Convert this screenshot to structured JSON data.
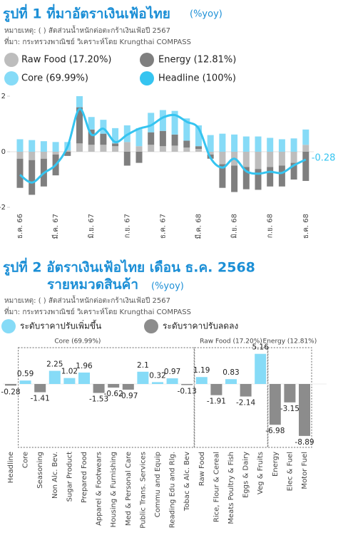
{
  "chart_data": [
    {
      "type": "combo",
      "title": "รูปที่ 1 ที่มาอัตราเงินเฟ้อไทย",
      "unit": "(%yoy)",
      "note": "หมายเหตุ: ( ) สัดส่วนน้ำหนักต่อตะกร้าเงินเฟ้อปี 2567",
      "source": "ที่มา: กระทรวงพาณิชย์ วิเคราะห์โดย Krungthai COMPASS",
      "categories": [
        "ธ.ค. 66",
        null,
        null,
        "มี.ค. 67",
        null,
        null,
        "มิ.ย. 67",
        null,
        null,
        "ก.ย. 67",
        null,
        null,
        "ธ.ค. 67",
        null,
        null,
        "มี.ค. 68",
        null,
        null,
        "มิ.ย. 68",
        null,
        null,
        "ก.ย. 68",
        null,
        null,
        "ธ.ค. 68"
      ],
      "series": [
        {
          "name": "Raw Food (17.20%)",
          "color": "#bdbdbd",
          "kind": "bar",
          "values": [
            -0.25,
            -0.3,
            -0.25,
            -0.1,
            0.05,
            0.3,
            0.25,
            0.25,
            0.2,
            0.35,
            0.2,
            0.25,
            0.2,
            0.22,
            0.15,
            0.1,
            -0.1,
            -0.45,
            -0.5,
            -0.55,
            -0.62,
            -0.55,
            -0.5,
            -0.4,
            0.25
          ]
        },
        {
          "name": "Energy (12.81%)",
          "color": "#7f7f7f",
          "kind": "bar",
          "values": [
            -1.05,
            -1.25,
            -1.0,
            -0.75,
            -0.15,
            1.3,
            0.55,
            0.4,
            0.1,
            -0.5,
            -0.4,
            0.45,
            0.55,
            0.4,
            0.25,
            0.1,
            -0.15,
            -0.85,
            -0.95,
            -0.8,
            -0.75,
            -0.7,
            -0.75,
            -0.6,
            -1.05
          ]
        },
        {
          "name": "Core (69.99%)",
          "color": "#86dbf7",
          "kind": "bar",
          "values": [
            0.45,
            0.42,
            0.38,
            0.35,
            0.3,
            0.4,
            0.45,
            0.5,
            0.55,
            0.6,
            0.65,
            0.7,
            0.75,
            0.85,
            0.8,
            0.75,
            0.6,
            0.65,
            0.62,
            0.55,
            0.55,
            0.5,
            0.45,
            0.48,
            0.55
          ]
        },
        {
          "name": "Headline (100%)",
          "color": "#35c4f0",
          "kind": "line",
          "values": [
            -0.83,
            -1.11,
            -0.77,
            -0.47,
            0.19,
            1.54,
            0.62,
            0.83,
            0.35,
            0.61,
            0.83,
            0.95,
            1.23,
            1.32,
            1.08,
            0.84,
            -0.22,
            -0.57,
            -0.25,
            -0.7,
            -0.79,
            -0.72,
            -0.76,
            -0.49,
            -0.28
          ]
        }
      ],
      "ylim": [
        -2,
        2
      ],
      "yticks": [
        -2,
        0,
        2
      ]
    },
    {
      "type": "bar",
      "title": "รูปที่ 2 อัตราเงินเฟ้อไทย เดือน ธ.ค. 2568",
      "subtitle": "รายหมวดสินค้า",
      "unit": "(%yoy)",
      "note": "หมายเหตุ: ( ) สัดส่วนน้ำหนักต่อตะกร้าเงินเฟ้อปี 2567",
      "source": "ที่มา: กระทรวงพาณิชย์ วิเคราะห์โดย Krungthai COMPASS",
      "legend": [
        {
          "name": "ระดับราคาปรับเพิ่มขึ้น",
          "color": "#86dbf7"
        },
        {
          "name": "ระดับราคาปรับลดลง",
          "color": "#8c8c8c"
        }
      ],
      "groups": [
        "Core (69.99%)",
        "Raw Food (17.20%)",
        "Energy (12.81%)"
      ],
      "categories": [
        "Headline",
        "Core",
        "Seasoning",
        "Non Alc. Bev.",
        "Sugar Product",
        "Prepared Food",
        "Apparel & Footwears",
        "Housing & Furnishing",
        "Med & Personal Care",
        "Public Trans. Services",
        "Commu and Equip",
        "Reading Edu and Rlg.",
        "Tobac & Alc. Bev",
        "Raw Food",
        "Rice, Flour & Cereal",
        "Meats Poultry & Fish",
        "Eggs & Dairy",
        "Veg & Fruits",
        "Energy",
        "Elec & Fuel",
        "Motor Fuel"
      ],
      "values": [
        -0.28,
        0.59,
        -1.41,
        2.25,
        1.02,
        1.96,
        -1.53,
        -0.62,
        -0.97,
        2.1,
        0.32,
        0.97,
        -0.13,
        1.19,
        -1.91,
        0.83,
        -2.14,
        5.16,
        -6.98,
        -3.15,
        -8.89
      ],
      "ylim": [
        -10,
        6
      ]
    }
  ]
}
